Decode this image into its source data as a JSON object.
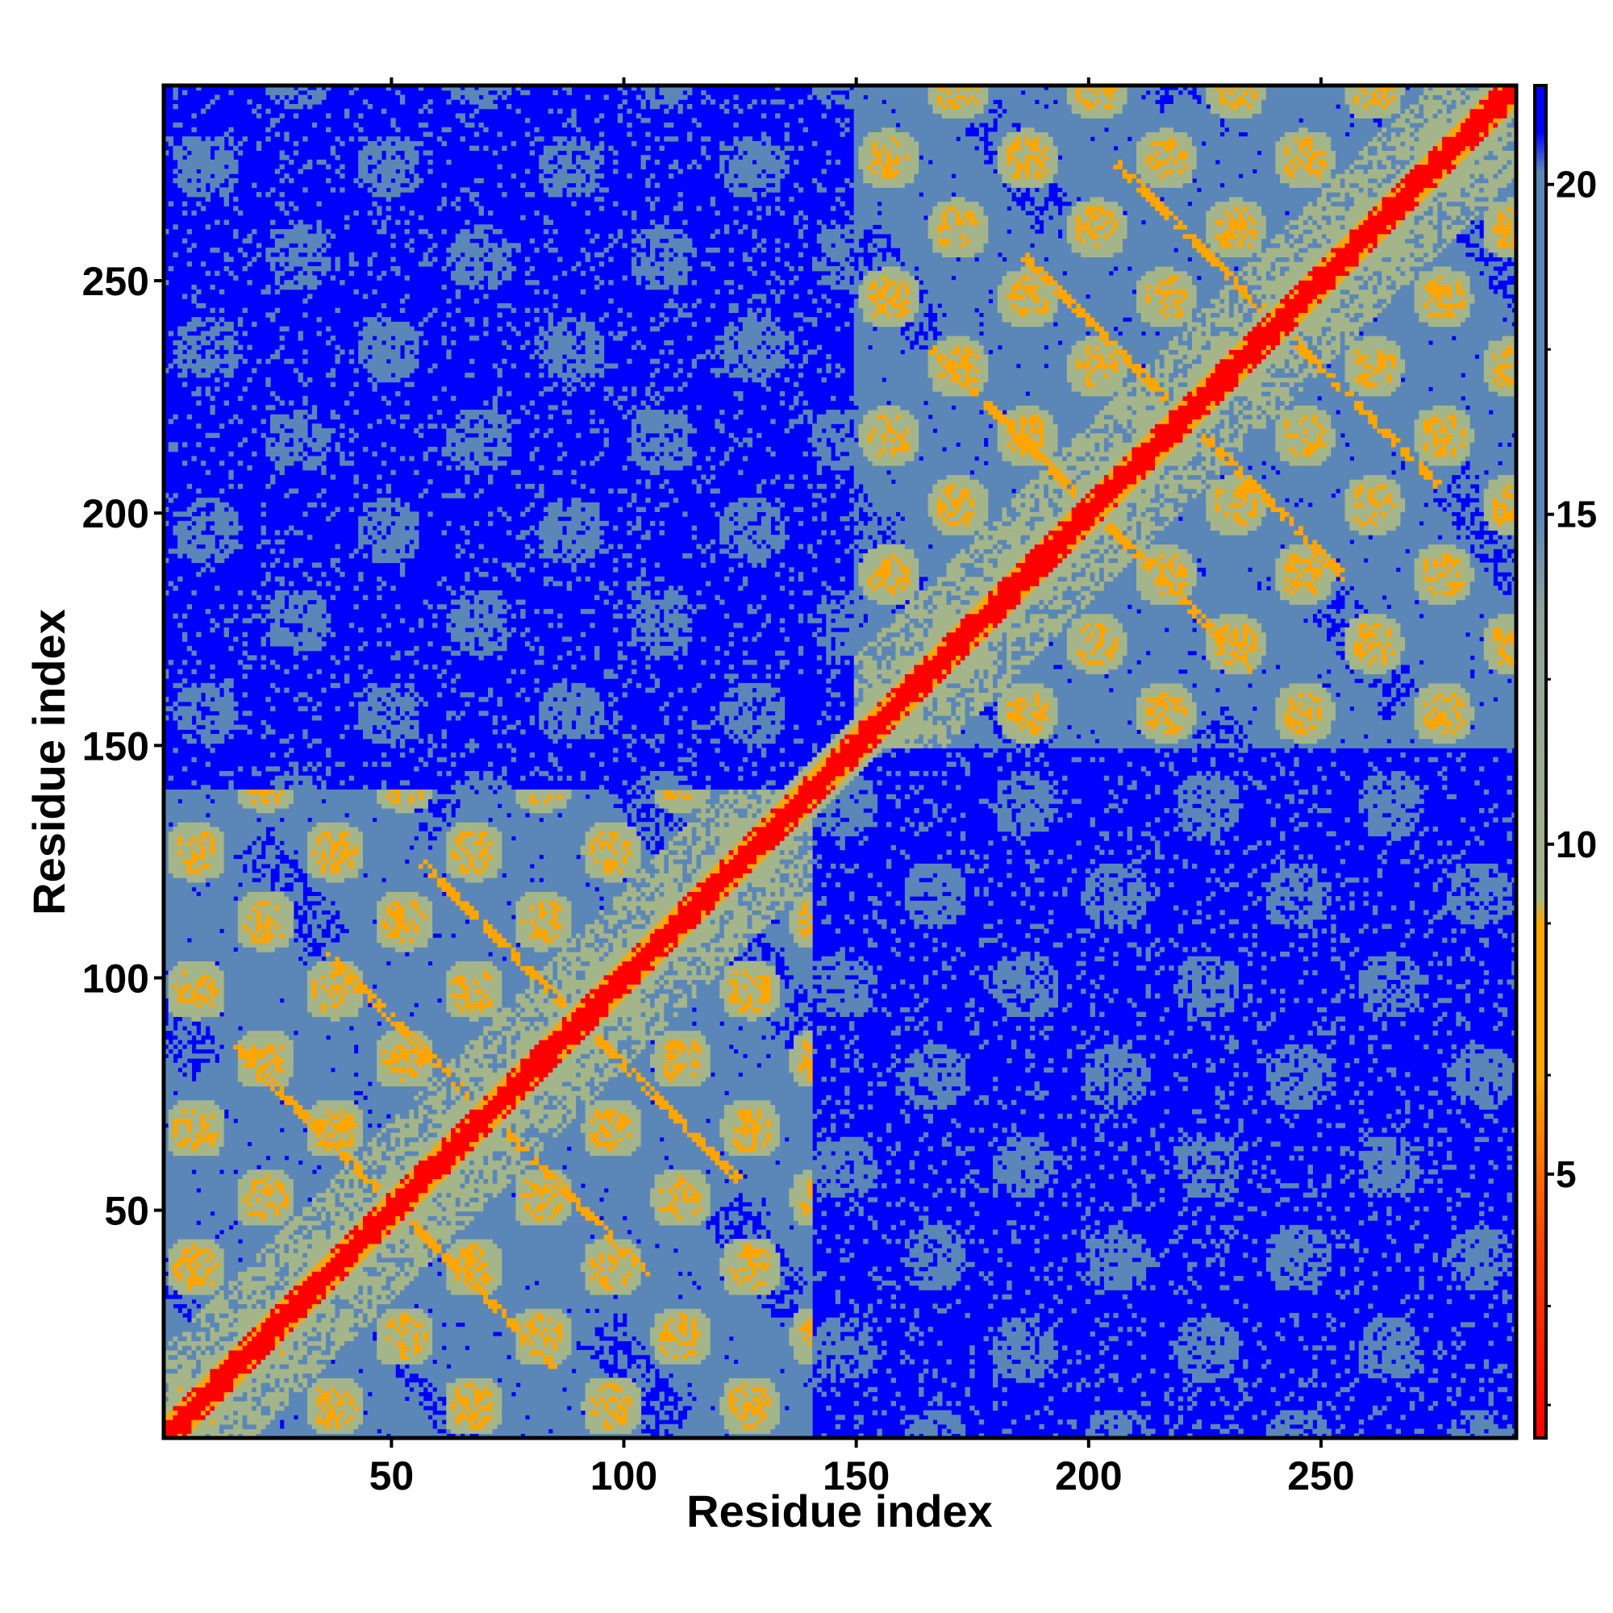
{
  "chart_data": {
    "type": "heatmap",
    "title": "",
    "xlabel": "Residue index",
    "ylabel": "Residue index",
    "n_residues": 292,
    "xlim": [
      1,
      292
    ],
    "ylim": [
      1,
      292
    ],
    "x_ticks": [
      50,
      100,
      150,
      200,
      250
    ],
    "y_ticks": [
      50,
      100,
      150,
      200,
      250
    ],
    "colorbar": {
      "range": [
        1,
        21.5
      ],
      "ticks": [
        5,
        10,
        15,
        20
      ],
      "stops": [
        {
          "value": 1,
          "color": "#ff0000"
        },
        {
          "value": 4,
          "color": "#ff4500"
        },
        {
          "value": 6.5,
          "color": "#ffa500"
        },
        {
          "value": 8.8,
          "color": "#ffa500"
        },
        {
          "value": 9.2,
          "color": "#a5b58a"
        },
        {
          "value": 13.5,
          "color": "#8fa39a"
        },
        {
          "value": 15,
          "color": "#5b87b8"
        },
        {
          "value": 20.2,
          "color": "#5b87b8"
        },
        {
          "value": 20.8,
          "color": "#0000ff"
        },
        {
          "value": 21.5,
          "color": "#0000ff"
        }
      ]
    },
    "domains": [
      {
        "start": 1,
        "end": 140
      },
      {
        "start": 150,
        "end": 292
      }
    ],
    "colors": {
      "diagonal": "#ff0000",
      "close_contact": "#ffa500",
      "mid": "#a5b58a",
      "far": "#5b87b8",
      "none": "#0000ff"
    },
    "grid": false,
    "legend": "colorbar-right"
  }
}
